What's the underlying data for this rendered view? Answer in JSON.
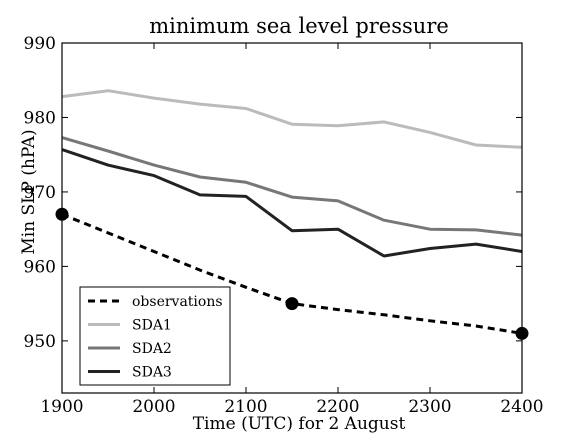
{
  "chart_data": {
    "type": "line",
    "title": "minimum sea level pressure",
    "xlabel": "Time (UTC) for 2 August",
    "ylabel": "Min SLP (hPA)",
    "xlim": [
      1900,
      2400
    ],
    "ylim": [
      943,
      990
    ],
    "xticks": [
      1900,
      2000,
      2100,
      2200,
      2300,
      2400
    ],
    "yticks": [
      950,
      960,
      970,
      980,
      990
    ],
    "grid": false,
    "legend_position": "lower-left",
    "series": [
      {
        "name": "observations",
        "color": "#000000",
        "line_style": "dashed",
        "markers": "filled-circle",
        "x": [
          1900,
          2150,
          2400
        ],
        "y": [
          967,
          955,
          951
        ],
        "curve_x": [
          1900,
          1950,
          2000,
          2050,
          2100,
          2150,
          2200,
          2250,
          2300,
          2350,
          2400
        ],
        "curve_y": [
          967,
          964.5,
          962,
          959.5,
          957.2,
          955,
          954.2,
          953.5,
          952.7,
          952,
          951
        ]
      },
      {
        "name": "SDA1",
        "color": "#bbbbbb",
        "line_style": "solid",
        "x": [
          1900,
          1950,
          2000,
          2050,
          2100,
          2150,
          2200,
          2250,
          2300,
          2350,
          2400
        ],
        "y": [
          982.8,
          983.6,
          982.6,
          981.8,
          981.2,
          979.1,
          978.9,
          979.4,
          978.0,
          976.3,
          976.0
        ]
      },
      {
        "name": "SDA2",
        "color": "#777777",
        "line_style": "solid",
        "x": [
          1900,
          1950,
          2000,
          2050,
          2100,
          2150,
          2200,
          2250,
          2300,
          2350,
          2400
        ],
        "y": [
          977.3,
          975.5,
          973.6,
          972.0,
          971.3,
          969.3,
          968.8,
          966.2,
          965.0,
          964.9,
          964.2
        ]
      },
      {
        "name": "SDA3",
        "color": "#222222",
        "line_style": "solid",
        "x": [
          1900,
          1950,
          2000,
          2050,
          2100,
          2150,
          2200,
          2250,
          2300,
          2350,
          2400
        ],
        "y": [
          975.7,
          973.6,
          972.2,
          969.6,
          969.4,
          964.8,
          965.0,
          961.4,
          962.4,
          963.0,
          962.0
        ]
      }
    ]
  }
}
